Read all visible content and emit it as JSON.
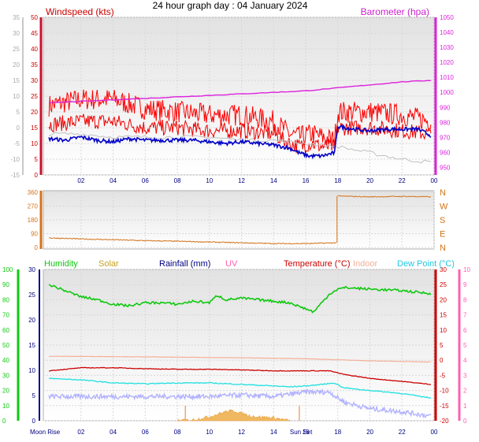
{
  "page": {
    "title": "24 hour graph day : 04 January 2024"
  },
  "colors": {
    "wind": "#ee0000",
    "gust": "#ff0000",
    "avg": "#0000c8",
    "baro": "#dd22dd",
    "dir": "#d4731a",
    "humidity": "#10c810",
    "solar": "#c8a020",
    "rainfall": "#000080",
    "uv": "#ff60b0",
    "temperature": "#cc0000",
    "indoor": "#f4b098",
    "dewpoint": "#20e0e0",
    "outdoor_light": "#b0b0ff",
    "grey_series": "#c0c0c0",
    "axis_left": "#000080",
    "grid": "#d8d8d8"
  },
  "chart_data": [
    {
      "type": "line",
      "title": "Windspeed (kts)",
      "title_right": "Barometer (hpa)",
      "x_ticks": [
        "02",
        "04",
        "06",
        "08",
        "10",
        "12",
        "14",
        "16",
        "18",
        "20",
        "22",
        "00"
      ],
      "y_left_outer": {
        "ticks": [
          -15,
          -10,
          -5,
          0,
          5,
          10,
          15,
          20,
          25,
          30,
          35
        ],
        "ylim": [
          -15,
          35
        ]
      },
      "y_left_inner": {
        "ticks": [
          0,
          5,
          10,
          15,
          20,
          25,
          30,
          35,
          40,
          45,
          50
        ],
        "ylim": [
          0,
          50
        ]
      },
      "y_right": {
        "label": "Barometer (hpa)",
        "ticks": [
          950,
          960,
          970,
          980,
          990,
          1000,
          1010,
          1020,
          1030,
          1040,
          1050
        ],
        "ylim": [
          945,
          1050
        ]
      },
      "series": [
        {
          "role": "gust",
          "axis": "inner",
          "hours": [
            0,
            2,
            4,
            6,
            8,
            10,
            12,
            14,
            15,
            15.6,
            16.4,
            17,
            17.8,
            18,
            20,
            22,
            23.8
          ],
          "values": [
            22,
            24,
            24,
            21,
            20,
            19,
            19,
            17,
            13,
            12,
            13,
            12,
            11,
            20,
            20,
            19,
            17
          ],
          "noise": 3.5
        },
        {
          "role": "wind",
          "axis": "inner",
          "hours": [
            0,
            2,
            4,
            6,
            8,
            10,
            12,
            14,
            15,
            15.6,
            16.4,
            17,
            17.8,
            18,
            20,
            22,
            23.8
          ],
          "values": [
            16,
            17,
            17,
            15,
            15,
            14,
            14,
            13,
            10,
            9,
            10,
            9,
            9,
            15,
            15,
            14,
            13
          ],
          "noise": 2.5
        },
        {
          "role": "grey_series",
          "axis": "inner",
          "hours": [
            0,
            2,
            4,
            6,
            8,
            10,
            12,
            14,
            16,
            18,
            19,
            20,
            22,
            23.8
          ],
          "values": [
            13,
            13,
            12,
            12,
            12,
            12,
            11,
            11,
            10,
            9,
            8,
            7,
            5,
            4
          ],
          "noise": 0.6
        },
        {
          "role": "avg",
          "axis": "inner",
          "hours": [
            0,
            1,
            2,
            3,
            4,
            5,
            6,
            7,
            8,
            9,
            10,
            11,
            12,
            13,
            14,
            15,
            15.6,
            16.2,
            17,
            17.8,
            18,
            19,
            20,
            21,
            22,
            23,
            23.8
          ],
          "values": [
            11.5,
            11,
            12,
            11,
            10.5,
            11.5,
            11,
            11,
            11,
            11,
            10.5,
            10,
            10.5,
            10,
            9.5,
            8.5,
            7,
            6,
            6,
            7,
            15.5,
            14.5,
            14,
            14.5,
            14.5,
            14.5,
            12.5
          ],
          "noise": 0.6
        },
        {
          "role": "baro",
          "axis": "right",
          "name": "Barometer (hpa)",
          "hours": [
            0,
            2,
            4,
            6,
            8,
            10,
            12,
            14,
            16,
            18,
            20,
            22,
            23.8
          ],
          "values": [
            993,
            994,
            995,
            996,
            997,
            998,
            999,
            1000,
            1001,
            1003,
            1005,
            1007,
            1008
          ],
          "noise": 0.2
        }
      ]
    },
    {
      "type": "line",
      "x_ticks": [
        "02",
        "04",
        "06",
        "08",
        "10",
        "12",
        "14",
        "16",
        "18",
        "20",
        "22",
        "00"
      ],
      "y_left": {
        "ticks": [
          0,
          90,
          180,
          270,
          360
        ],
        "ylim": [
          0,
          360
        ]
      },
      "y_right": {
        "ticks": [
          "N",
          "W",
          "S",
          "E",
          "N"
        ]
      },
      "series": [
        {
          "role": "dir",
          "hours": [
            0,
            2,
            4,
            6,
            8,
            10,
            12,
            14,
            16,
            17.9,
            18.0,
            20,
            22,
            23.8
          ],
          "values": [
            62,
            55,
            50,
            44,
            40,
            35,
            30,
            25,
            25,
            30,
            335,
            330,
            333,
            330
          ],
          "noise": 3
        }
      ]
    },
    {
      "type": "line",
      "legend": [
        "Humidity",
        "Solar",
        "Rainfall (mm)",
        "UV",
        "Temperature (°C)",
        "Indoor",
        "Dew Point (°C)"
      ],
      "x_ticks": [
        "Moon Rise",
        "02",
        "04",
        "06",
        "08",
        "10",
        "12",
        "14",
        "Sun Set",
        "16",
        "18",
        "20",
        "22",
        "00"
      ],
      "y_humidity": {
        "ticks": [
          0,
          10,
          20,
          30,
          40,
          50,
          60,
          70,
          80,
          90,
          100
        ],
        "ylim": [
          0,
          100
        ]
      },
      "y_rain": {
        "ticks": [
          0,
          5,
          10,
          15,
          20,
          25,
          30
        ],
        "ylim": [
          0,
          30
        ]
      },
      "y_temp": {
        "ticks": [
          -20,
          -15,
          -10,
          -5,
          0,
          5,
          10,
          15,
          20,
          25,
          30
        ],
        "ylim": [
          -20,
          30
        ]
      },
      "y_uv": {
        "ticks": [
          0,
          1,
          2,
          3,
          4,
          5,
          6,
          7,
          8,
          9,
          10
        ],
        "ylim": [
          0,
          10
        ]
      },
      "markers": {
        "moon_rise_hour": 0,
        "sun_set_hour": 15.6,
        "solar_mark_hour": 8.5
      },
      "series": [
        {
          "role": "humidity",
          "axis": "humidity",
          "hours": [
            0,
            1,
            2,
            3,
            4,
            5,
            6,
            7,
            8,
            9,
            10,
            10.5,
            11,
            12,
            13,
            14,
            15,
            16,
            16.5,
            17,
            17.5,
            18,
            18.5,
            20,
            22,
            23.8
          ],
          "values": [
            90,
            86,
            82,
            80,
            77,
            76,
            78,
            78,
            77,
            79,
            78,
            83,
            80,
            81,
            80,
            79,
            78,
            74,
            72,
            78,
            84,
            87,
            88,
            87,
            86,
            84
          ],
          "noise": 0.8
        },
        {
          "role": "indoor",
          "axis": "temp",
          "hours": [
            0,
            4,
            8,
            12,
            16,
            20,
            23.8
          ],
          "values": [
            1.3,
            1.2,
            1.0,
            0.8,
            0.5,
            -0.2,
            -0.6
          ],
          "noise": 0.05
        },
        {
          "role": "temperature",
          "axis": "temp",
          "hours": [
            0,
            2,
            4,
            6,
            8,
            10,
            12,
            14,
            16,
            17.5,
            18,
            18.5,
            20,
            22,
            23.8
          ],
          "values": [
            -3.5,
            -2.5,
            -2.5,
            -2.8,
            -3,
            -3,
            -3.2,
            -3.5,
            -3.5,
            -3.5,
            -4.2,
            -4.8,
            -6,
            -7,
            -8
          ],
          "noise": 0.1
        },
        {
          "role": "dewpoint",
          "axis": "temp",
          "hours": [
            0,
            2,
            4,
            6,
            8,
            10,
            12,
            14,
            15,
            16,
            17,
            17.8,
            18.3,
            19,
            20,
            22,
            23.8
          ],
          "values": [
            -6,
            -6.5,
            -7.5,
            -7.8,
            -7.5,
            -7.5,
            -8,
            -8.5,
            -8.8,
            -8.5,
            -8,
            -7.5,
            -9,
            -9.5,
            -10,
            -11,
            -12.5
          ],
          "noise": 0.15
        },
        {
          "role": "outdoor_light",
          "axis": "temp",
          "hours": [
            0,
            2,
            4,
            6,
            8,
            10,
            12,
            14,
            16,
            17.5,
            18,
            18.5,
            20,
            22,
            23.8
          ],
          "values": [
            -12,
            -12,
            -12,
            -12,
            -12,
            -12,
            -11.5,
            -12,
            -10.5,
            -10.5,
            -12.5,
            -14,
            -16,
            -17,
            -18.5
          ],
          "noise": 0.8
        },
        {
          "role": "solar",
          "axis": "rain",
          "hours": [
            8,
            9,
            10,
            10.5,
            11,
            11.5,
            12,
            12.5,
            13,
            14,
            15
          ],
          "values": [
            0,
            0.2,
            0.8,
            1.3,
            1.8,
            2.0,
            1.5,
            1.0,
            0.8,
            0.6,
            0
          ],
          "noise": 0.3
        }
      ]
    }
  ]
}
